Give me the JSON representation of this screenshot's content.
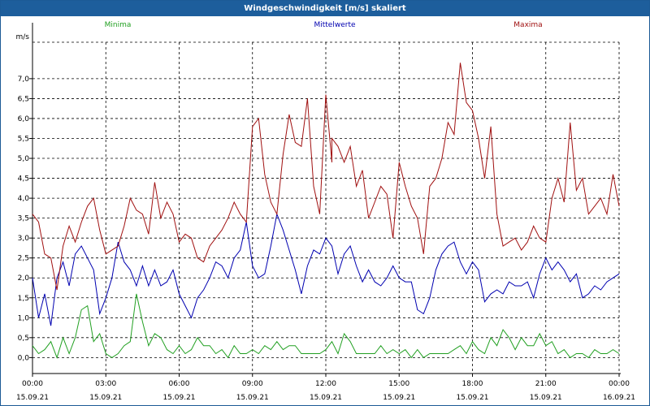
{
  "window": {
    "title": "Windgeschwindigkeit [m/s] skaliert"
  },
  "chart_data": {
    "type": "line",
    "unit_label": "m/s",
    "ylim": [
      -0.4,
      8.2
    ],
    "y_ticks": [
      "0,0",
      "0,5",
      "1,0",
      "1,5",
      "2,0",
      "2,5",
      "3,0",
      "3,5",
      "4,0",
      "4,5",
      "5,0",
      "5,5",
      "6,0",
      "6,5",
      "7,0"
    ],
    "y_tick_values": [
      0,
      0.5,
      1,
      1.5,
      2,
      2.5,
      3,
      3.5,
      4,
      4.5,
      5,
      5.5,
      6,
      6.5,
      7
    ],
    "xlim": [
      0,
      24
    ],
    "x_ticks": [
      {
        "time": "00:00",
        "date": "15.09.21",
        "value": 0
      },
      {
        "time": "03:00",
        "date": "15.09.21",
        "value": 3
      },
      {
        "time": "06:00",
        "date": "15.09.21",
        "value": 6
      },
      {
        "time": "09:00",
        "date": "15.09.21",
        "value": 9
      },
      {
        "time": "12:00",
        "date": "15.09.21",
        "value": 12
      },
      {
        "time": "15:00",
        "date": "15.09.21",
        "value": 15
      },
      {
        "time": "18:00",
        "date": "15.09.21",
        "value": 18
      },
      {
        "time": "21:00",
        "date": "15.09.21",
        "value": 21
      },
      {
        "time": "00:00",
        "date": "16.09.21",
        "value": 24
      }
    ],
    "grid": true,
    "series": [
      {
        "name": "Minima",
        "color": "#22a022",
        "points": [
          [
            0,
            0.3
          ],
          [
            0.25,
            0.1
          ],
          [
            0.5,
            0.2
          ],
          [
            0.75,
            0.4
          ],
          [
            1,
            0.0
          ],
          [
            1.25,
            0.5
          ],
          [
            1.5,
            0.1
          ],
          [
            1.75,
            0.5
          ],
          [
            2,
            1.2
          ],
          [
            2.25,
            1.3
          ],
          [
            2.5,
            0.4
          ],
          [
            2.75,
            0.6
          ],
          [
            3,
            0.1
          ],
          [
            3.25,
            0.0
          ],
          [
            3.5,
            0.1
          ],
          [
            3.75,
            0.3
          ],
          [
            4,
            0.4
          ],
          [
            4.25,
            1.6
          ],
          [
            4.5,
            0.9
          ],
          [
            4.75,
            0.3
          ],
          [
            5,
            0.6
          ],
          [
            5.25,
            0.5
          ],
          [
            5.5,
            0.2
          ],
          [
            5.75,
            0.1
          ],
          [
            6,
            0.3
          ],
          [
            6.25,
            0.1
          ],
          [
            6.5,
            0.2
          ],
          [
            6.75,
            0.5
          ],
          [
            7,
            0.3
          ],
          [
            7.25,
            0.3
          ],
          [
            7.5,
            0.1
          ],
          [
            7.75,
            0.2
          ],
          [
            8,
            0.0
          ],
          [
            8.25,
            0.3
          ],
          [
            8.5,
            0.1
          ],
          [
            8.75,
            0.1
          ],
          [
            9,
            0.2
          ],
          [
            9.25,
            0.1
          ],
          [
            9.5,
            0.3
          ],
          [
            9.75,
            0.2
          ],
          [
            10,
            0.4
          ],
          [
            10.25,
            0.2
          ],
          [
            10.5,
            0.3
          ],
          [
            10.75,
            0.3
          ],
          [
            11,
            0.1
          ],
          [
            11.25,
            0.1
          ],
          [
            11.5,
            0.1
          ],
          [
            11.75,
            0.1
          ],
          [
            12,
            0.2
          ],
          [
            12.25,
            0.4
          ],
          [
            12.5,
            0.1
          ],
          [
            12.75,
            0.6
          ],
          [
            13,
            0.4
          ],
          [
            13.25,
            0.1
          ],
          [
            13.5,
            0.1
          ],
          [
            13.75,
            0.1
          ],
          [
            14,
            0.1
          ],
          [
            14.25,
            0.3
          ],
          [
            14.5,
            0.1
          ],
          [
            14.75,
            0.2
          ],
          [
            15,
            0.1
          ],
          [
            15.25,
            0.2
          ],
          [
            15.5,
            0.0
          ],
          [
            15.75,
            0.2
          ],
          [
            16,
            0.0
          ],
          [
            16.25,
            0.1
          ],
          [
            16.5,
            0.1
          ],
          [
            16.75,
            0.1
          ],
          [
            17,
            0.1
          ],
          [
            17.25,
            0.2
          ],
          [
            17.5,
            0.3
          ],
          [
            17.75,
            0.1
          ],
          [
            18,
            0.4
          ],
          [
            18.25,
            0.2
          ],
          [
            18.5,
            0.1
          ],
          [
            18.75,
            0.5
          ],
          [
            19,
            0.3
          ],
          [
            19.25,
            0.7
          ],
          [
            19.5,
            0.5
          ],
          [
            19.75,
            0.2
          ],
          [
            20,
            0.5
          ],
          [
            20.25,
            0.3
          ],
          [
            20.5,
            0.3
          ],
          [
            20.75,
            0.6
          ],
          [
            21,
            0.3
          ],
          [
            21.25,
            0.4
          ],
          [
            21.5,
            0.1
          ],
          [
            21.75,
            0.2
          ],
          [
            22,
            0.0
          ],
          [
            22.25,
            0.1
          ],
          [
            22.5,
            0.1
          ],
          [
            22.75,
            0.0
          ],
          [
            23,
            0.2
          ],
          [
            23.25,
            0.1
          ],
          [
            23.5,
            0.1
          ],
          [
            23.75,
            0.2
          ],
          [
            24,
            0.1
          ]
        ]
      },
      {
        "name": "Mittelwerte",
        "color": "#0000b0",
        "points": [
          [
            0,
            2.0
          ],
          [
            0.25,
            1.0
          ],
          [
            0.5,
            1.6
          ],
          [
            0.75,
            0.8
          ],
          [
            1,
            2.0
          ],
          [
            1.25,
            2.4
          ],
          [
            1.5,
            1.8
          ],
          [
            1.75,
            2.6
          ],
          [
            2,
            2.8
          ],
          [
            2.25,
            2.5
          ],
          [
            2.5,
            2.2
          ],
          [
            2.75,
            1.1
          ],
          [
            3,
            1.5
          ],
          [
            3.25,
            2.0
          ],
          [
            3.5,
            2.9
          ],
          [
            3.75,
            2.4
          ],
          [
            4,
            2.2
          ],
          [
            4.25,
            1.8
          ],
          [
            4.5,
            2.3
          ],
          [
            4.75,
            1.8
          ],
          [
            5,
            2.2
          ],
          [
            5.25,
            1.8
          ],
          [
            5.5,
            1.9
          ],
          [
            5.75,
            2.2
          ],
          [
            6,
            1.6
          ],
          [
            6.25,
            1.3
          ],
          [
            6.5,
            1.0
          ],
          [
            6.75,
            1.5
          ],
          [
            7,
            1.7
          ],
          [
            7.25,
            2.0
          ],
          [
            7.5,
            2.4
          ],
          [
            7.75,
            2.3
          ],
          [
            8,
            2.0
          ],
          [
            8.25,
            2.5
          ],
          [
            8.5,
            2.7
          ],
          [
            8.75,
            3.4
          ],
          [
            9,
            2.3
          ],
          [
            9.25,
            2.0
          ],
          [
            9.5,
            2.1
          ],
          [
            9.75,
            2.8
          ],
          [
            10,
            3.6
          ],
          [
            10.25,
            3.2
          ],
          [
            10.5,
            2.7
          ],
          [
            10.75,
            2.2
          ],
          [
            11,
            1.6
          ],
          [
            11.25,
            2.3
          ],
          [
            11.5,
            2.7
          ],
          [
            11.75,
            2.6
          ],
          [
            12,
            3.0
          ],
          [
            12.25,
            2.8
          ],
          [
            12.5,
            2.1
          ],
          [
            12.75,
            2.6
          ],
          [
            13,
            2.8
          ],
          [
            13.25,
            2.3
          ],
          [
            13.5,
            1.9
          ],
          [
            13.75,
            2.2
          ],
          [
            14,
            1.9
          ],
          [
            14.25,
            1.8
          ],
          [
            14.5,
            2.0
          ],
          [
            14.75,
            2.3
          ],
          [
            15,
            2.0
          ],
          [
            15.25,
            1.9
          ],
          [
            15.5,
            1.9
          ],
          [
            15.75,
            1.2
          ],
          [
            16,
            1.1
          ],
          [
            16.25,
            1.5
          ],
          [
            16.5,
            2.2
          ],
          [
            16.75,
            2.6
          ],
          [
            17,
            2.8
          ],
          [
            17.25,
            2.9
          ],
          [
            17.5,
            2.4
          ],
          [
            17.75,
            2.1
          ],
          [
            18,
            2.4
          ],
          [
            18.25,
            2.2
          ],
          [
            18.5,
            1.4
          ],
          [
            18.75,
            1.6
          ],
          [
            19,
            1.7
          ],
          [
            19.25,
            1.6
          ],
          [
            19.5,
            1.9
          ],
          [
            19.75,
            1.8
          ],
          [
            20,
            1.8
          ],
          [
            20.25,
            1.9
          ],
          [
            20.5,
            1.5
          ],
          [
            20.75,
            2.1
          ],
          [
            21,
            2.5
          ],
          [
            21.25,
            2.2
          ],
          [
            21.5,
            2.4
          ],
          [
            21.75,
            2.2
          ],
          [
            22,
            1.9
          ],
          [
            22.25,
            2.1
          ],
          [
            22.5,
            1.5
          ],
          [
            22.75,
            1.6
          ],
          [
            23,
            1.8
          ],
          [
            23.25,
            1.7
          ],
          [
            23.5,
            1.9
          ],
          [
            23.75,
            2.0
          ],
          [
            24,
            2.1
          ]
        ]
      },
      {
        "name": "Maxima",
        "color": "#a01010",
        "points": [
          [
            0,
            3.6
          ],
          [
            0.25,
            3.4
          ],
          [
            0.5,
            2.6
          ],
          [
            0.75,
            2.5
          ],
          [
            1,
            1.7
          ],
          [
            1.25,
            2.8
          ],
          [
            1.5,
            3.3
          ],
          [
            1.75,
            2.9
          ],
          [
            2,
            3.4
          ],
          [
            2.25,
            3.8
          ],
          [
            2.5,
            4.0
          ],
          [
            2.75,
            3.2
          ],
          [
            3,
            2.6
          ],
          [
            3.25,
            2.7
          ],
          [
            3.5,
            2.8
          ],
          [
            3.75,
            3.3
          ],
          [
            4,
            4.0
          ],
          [
            4.25,
            3.7
          ],
          [
            4.5,
            3.6
          ],
          [
            4.75,
            3.1
          ],
          [
            5,
            4.4
          ],
          [
            5.25,
            3.5
          ],
          [
            5.5,
            3.9
          ],
          [
            5.75,
            3.6
          ],
          [
            6,
            2.9
          ],
          [
            6.25,
            3.1
          ],
          [
            6.5,
            3.0
          ],
          [
            6.75,
            2.5
          ],
          [
            7,
            2.4
          ],
          [
            7.25,
            2.8
          ],
          [
            7.5,
            3.0
          ],
          [
            7.75,
            3.2
          ],
          [
            8,
            3.5
          ],
          [
            8.25,
            3.9
          ],
          [
            8.5,
            3.6
          ],
          [
            8.75,
            3.4
          ],
          [
            9,
            5.8
          ],
          [
            9.25,
            6.0
          ],
          [
            9.5,
            4.6
          ],
          [
            9.75,
            3.9
          ],
          [
            10,
            3.6
          ],
          [
            10.25,
            5.1
          ],
          [
            10.5,
            6.1
          ],
          [
            10.75,
            5.4
          ],
          [
            11,
            5.3
          ],
          [
            11.25,
            6.5
          ],
          [
            11.5,
            4.3
          ],
          [
            11.75,
            3.6
          ],
          [
            12,
            6.6
          ],
          [
            12.25,
            4.9
          ],
          [
            12.25,
            5.5
          ],
          [
            12.5,
            5.3
          ],
          [
            12.75,
            4.9
          ],
          [
            13,
            5.3
          ],
          [
            13.25,
            4.3
          ],
          [
            13.5,
            4.7
          ],
          [
            13.75,
            3.5
          ],
          [
            14,
            3.9
          ],
          [
            14.25,
            4.3
          ],
          [
            14.5,
            4.1
          ],
          [
            14.75,
            3.0
          ],
          [
            15,
            4.9
          ],
          [
            15.25,
            4.3
          ],
          [
            15.5,
            3.8
          ],
          [
            15.75,
            3.5
          ],
          [
            16,
            2.6
          ],
          [
            16.25,
            4.3
          ],
          [
            16.5,
            4.5
          ],
          [
            16.75,
            5.0
          ],
          [
            17,
            5.9
          ],
          [
            17.25,
            5.6
          ],
          [
            17.5,
            7.4
          ],
          [
            17.75,
            6.4
          ],
          [
            18,
            6.2
          ],
          [
            18.25,
            5.5
          ],
          [
            18.5,
            4.5
          ],
          [
            18.75,
            5.8
          ],
          [
            19,
            3.6
          ],
          [
            19.25,
            2.8
          ],
          [
            19.5,
            2.9
          ],
          [
            19.75,
            3.0
          ],
          [
            20,
            2.7
          ],
          [
            20.25,
            2.9
          ],
          [
            20.5,
            3.3
          ],
          [
            20.75,
            3.0
          ],
          [
            21,
            2.9
          ],
          [
            21.25,
            4.0
          ],
          [
            21.5,
            4.5
          ],
          [
            21.75,
            3.9
          ],
          [
            22,
            5.9
          ],
          [
            22.25,
            4.2
          ],
          [
            22.5,
            4.5
          ],
          [
            22.75,
            3.6
          ],
          [
            23,
            3.8
          ],
          [
            23.25,
            4.0
          ],
          [
            23.5,
            3.6
          ],
          [
            23.75,
            4.6
          ],
          [
            24,
            3.8
          ]
        ]
      }
    ]
  }
}
